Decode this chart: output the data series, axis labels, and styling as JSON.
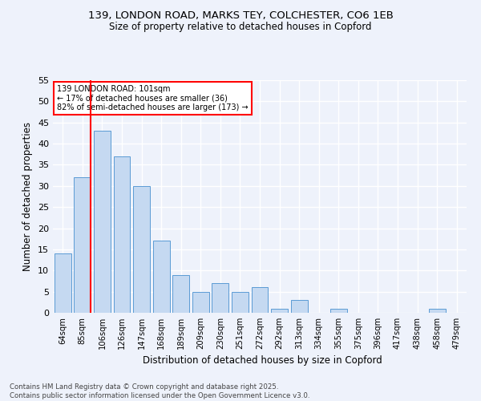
{
  "title1": "139, LONDON ROAD, MARKS TEY, COLCHESTER, CO6 1EB",
  "title2": "Size of property relative to detached houses in Copford",
  "xlabel": "Distribution of detached houses by size in Copford",
  "ylabel": "Number of detached properties",
  "categories": [
    "64sqm",
    "85sqm",
    "106sqm",
    "126sqm",
    "147sqm",
    "168sqm",
    "189sqm",
    "209sqm",
    "230sqm",
    "251sqm",
    "272sqm",
    "292sqm",
    "313sqm",
    "334sqm",
    "355sqm",
    "375sqm",
    "396sqm",
    "417sqm",
    "438sqm",
    "458sqm",
    "479sqm"
  ],
  "values": [
    14,
    32,
    43,
    37,
    30,
    17,
    9,
    5,
    7,
    5,
    6,
    1,
    3,
    0,
    1,
    0,
    0,
    0,
    0,
    1,
    0
  ],
  "bar_color": "#c5d9f1",
  "bar_edge_color": "#5b9bd5",
  "vline_index": 1.4,
  "vline_color": "red",
  "annotation_text": "139 LONDON ROAD: 101sqm\n← 17% of detached houses are smaller (36)\n82% of semi-detached houses are larger (173) →",
  "annotation_box_color": "white",
  "annotation_box_edge_color": "red",
  "ylim": [
    0,
    55
  ],
  "yticks": [
    0,
    5,
    10,
    15,
    20,
    25,
    30,
    35,
    40,
    45,
    50,
    55
  ],
  "background_color": "#eef2fb",
  "grid_color": "#ffffff",
  "footer1": "Contains HM Land Registry data © Crown copyright and database right 2025.",
  "footer2": "Contains public sector information licensed under the Open Government Licence v3.0."
}
